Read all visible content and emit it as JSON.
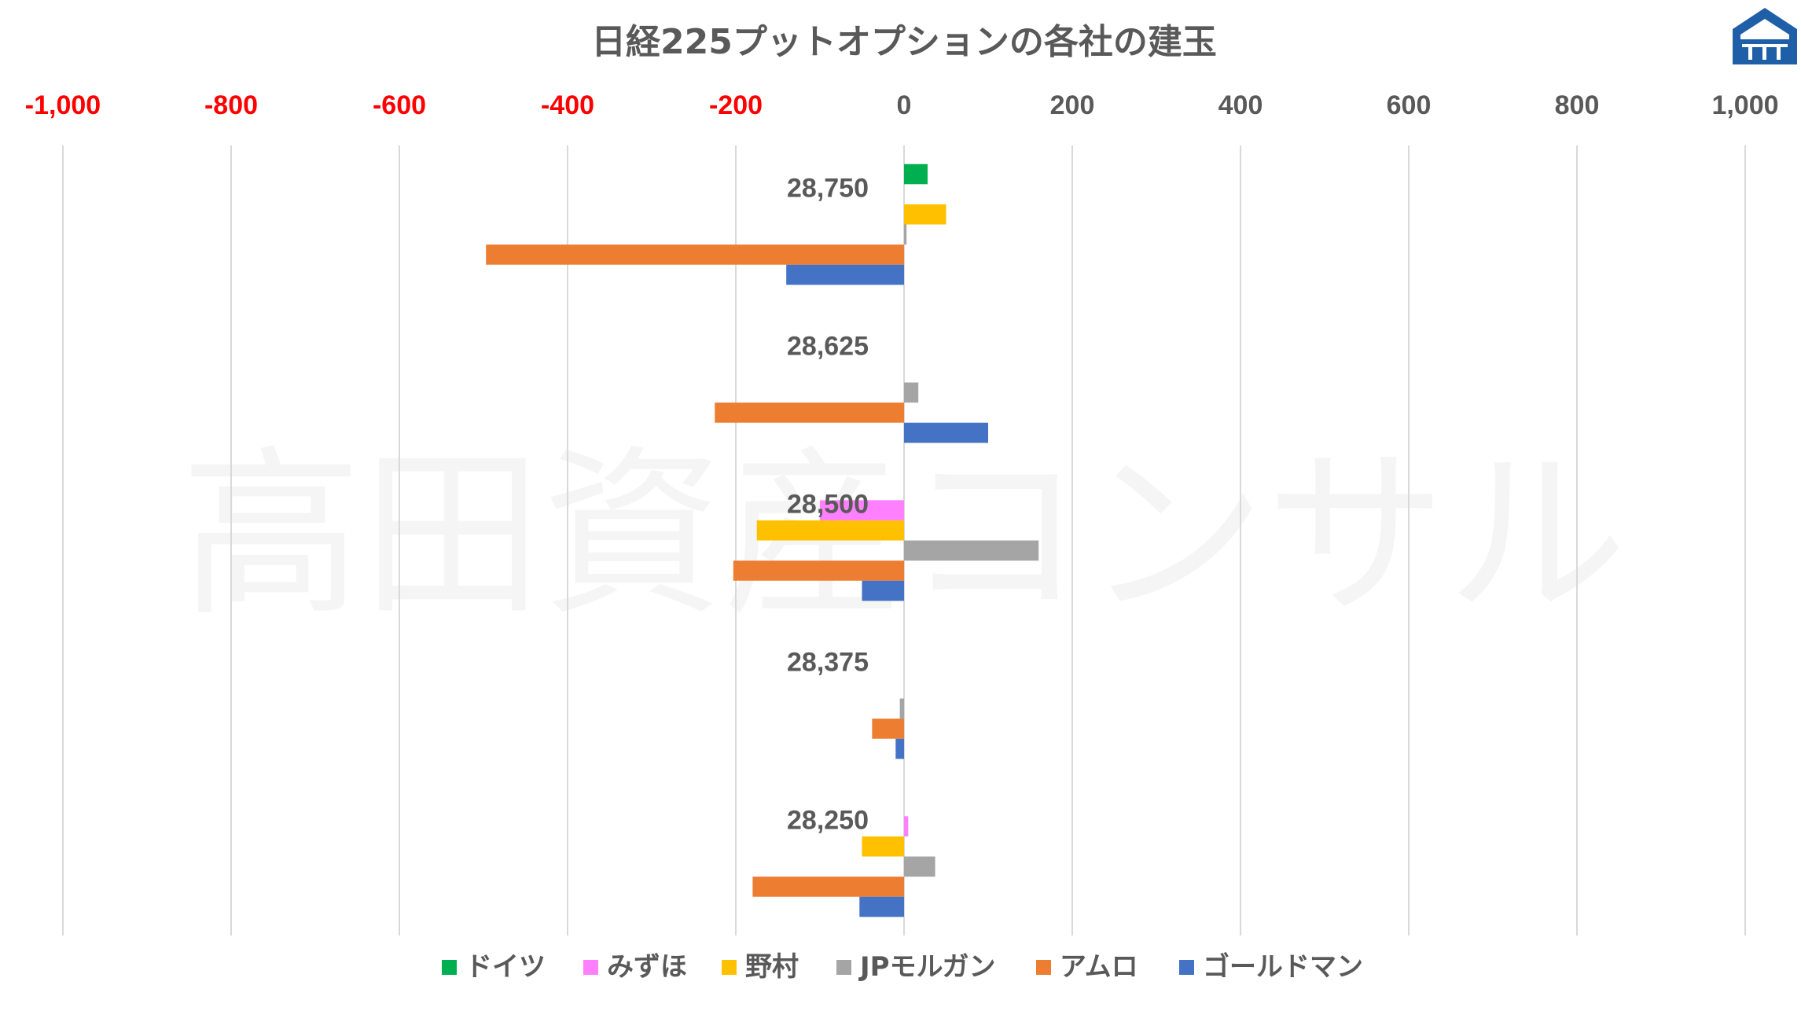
{
  "chart_data": {
    "type": "bar",
    "orientation": "horizontal",
    "title": "日経225プットオプションの各社の建玉",
    "categories": [
      "28,750",
      "28,625",
      "28,500",
      "28,375",
      "28,250"
    ],
    "xlim": [
      -1000,
      1000
    ],
    "x_ticks": [
      -1000,
      -800,
      -600,
      -400,
      -200,
      0,
      200,
      400,
      600,
      800,
      1000
    ],
    "x_tick_labels": [
      "-1,000",
      "-800",
      "-600",
      "-400",
      "-200",
      "0",
      "200",
      "400",
      "600",
      "800",
      "1,000"
    ],
    "negative_tick_color": "#FF0000",
    "positive_tick_color": "#595959",
    "grid": true,
    "legend_position": "bottom",
    "series": [
      {
        "name": "ドイツ",
        "color": "#00B050",
        "values": [
          28,
          0,
          0,
          0,
          0
        ]
      },
      {
        "name": "みずほ",
        "color": "#FF80FF",
        "values": [
          0,
          0,
          -100,
          0,
          5
        ]
      },
      {
        "name": "野村",
        "color": "#FFC000",
        "values": [
          50,
          0,
          -175,
          0,
          -50
        ]
      },
      {
        "name": "JPモルガン",
        "color": "#A5A5A5",
        "values": [
          3,
          17,
          160,
          -5,
          37
        ]
      },
      {
        "name": "アムロ",
        "color": "#ED7D31",
        "values": [
          -497,
          -225,
          -203,
          -38,
          -180
        ]
      },
      {
        "name": "ゴールドマン",
        "color": "#4472C4",
        "values": [
          -140,
          100,
          -50,
          -10,
          -53
        ]
      }
    ]
  },
  "watermark": "高田資産コンサル",
  "logo": {
    "icon": "house-logo-icon",
    "color": "#1F5FA8"
  }
}
